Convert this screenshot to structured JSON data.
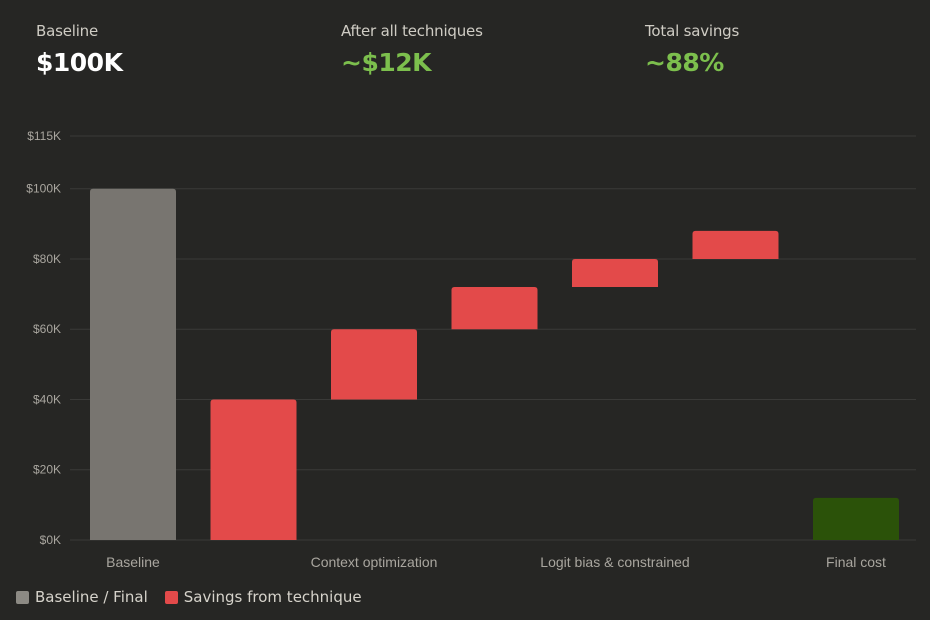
{
  "summary": {
    "baseline": {
      "label": "Baseline",
      "value": "$100K"
    },
    "after": {
      "label": "After all techniques",
      "value": "~$12K"
    },
    "savings": {
      "label": "Total savings",
      "value": "~88%"
    }
  },
  "colors": {
    "baseline": "#787570",
    "savings": "#e34a4a",
    "final": "#2b5209",
    "accent_green": "#7cbf4d",
    "grid": "#3a3a38",
    "tick_text": "#a9a69f"
  },
  "legend": [
    {
      "label": "Baseline / Final",
      "color": "#8c8a84"
    },
    {
      "label": "Savings from technique",
      "color": "#e34a4a"
    }
  ],
  "chart_data": {
    "type": "bar",
    "subtype": "waterfall",
    "ylim": [
      0,
      115
    ],
    "yticks": [
      0,
      20,
      40,
      60,
      80,
      100,
      115
    ],
    "ytick_labels": [
      "$0K",
      "$20K",
      "$40K",
      "$60K",
      "$80K",
      "$100K",
      "$115K"
    ],
    "grid": true,
    "legend_position": "bottom-left",
    "bars": [
      {
        "kind": "baseline",
        "bottom": 0,
        "top": 100
      },
      {
        "kind": "savings",
        "bottom": 0,
        "top": 40
      },
      {
        "kind": "savings",
        "bottom": 40,
        "top": 60
      },
      {
        "kind": "savings",
        "bottom": 60,
        "top": 72
      },
      {
        "kind": "savings",
        "bottom": 72,
        "top": 80
      },
      {
        "kind": "savings",
        "bottom": 80,
        "top": 88
      },
      {
        "kind": "final",
        "bottom": 0,
        "top": 12
      }
    ],
    "category_labels": [
      "Baseline",
      "",
      "Context optimization",
      "",
      "Logit bias & constrained",
      "",
      "Final cost"
    ]
  }
}
